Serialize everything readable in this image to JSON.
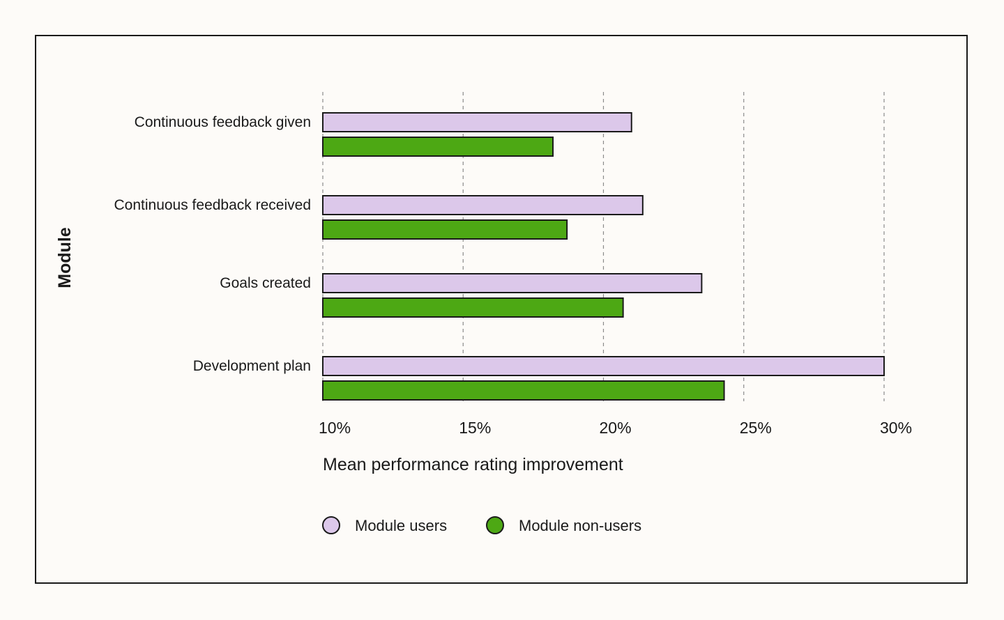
{
  "chart_data": {
    "type": "bar",
    "orientation": "horizontal",
    "categories": [
      "Continuous feedback given",
      "Continuous feedback received",
      "Goals created",
      "Development plan"
    ],
    "series": [
      {
        "name": "Module users",
        "values": [
          21.0,
          21.4,
          23.5,
          30.0
        ],
        "color": "#dcc8ea"
      },
      {
        "name": "Module non-users",
        "values": [
          18.2,
          18.7,
          20.7,
          24.3
        ],
        "color": "#4da814"
      }
    ],
    "xlabel": "Mean performance rating improvement",
    "ylabel": "Module",
    "xlim": [
      10,
      30
    ],
    "x_ticks": [
      10,
      15,
      20,
      25,
      30
    ],
    "x_tick_labels": [
      "10%",
      "15%",
      "20%",
      "25%",
      "30%"
    ],
    "grid": "vertical-dashed",
    "legend_position": "bottom-left"
  }
}
